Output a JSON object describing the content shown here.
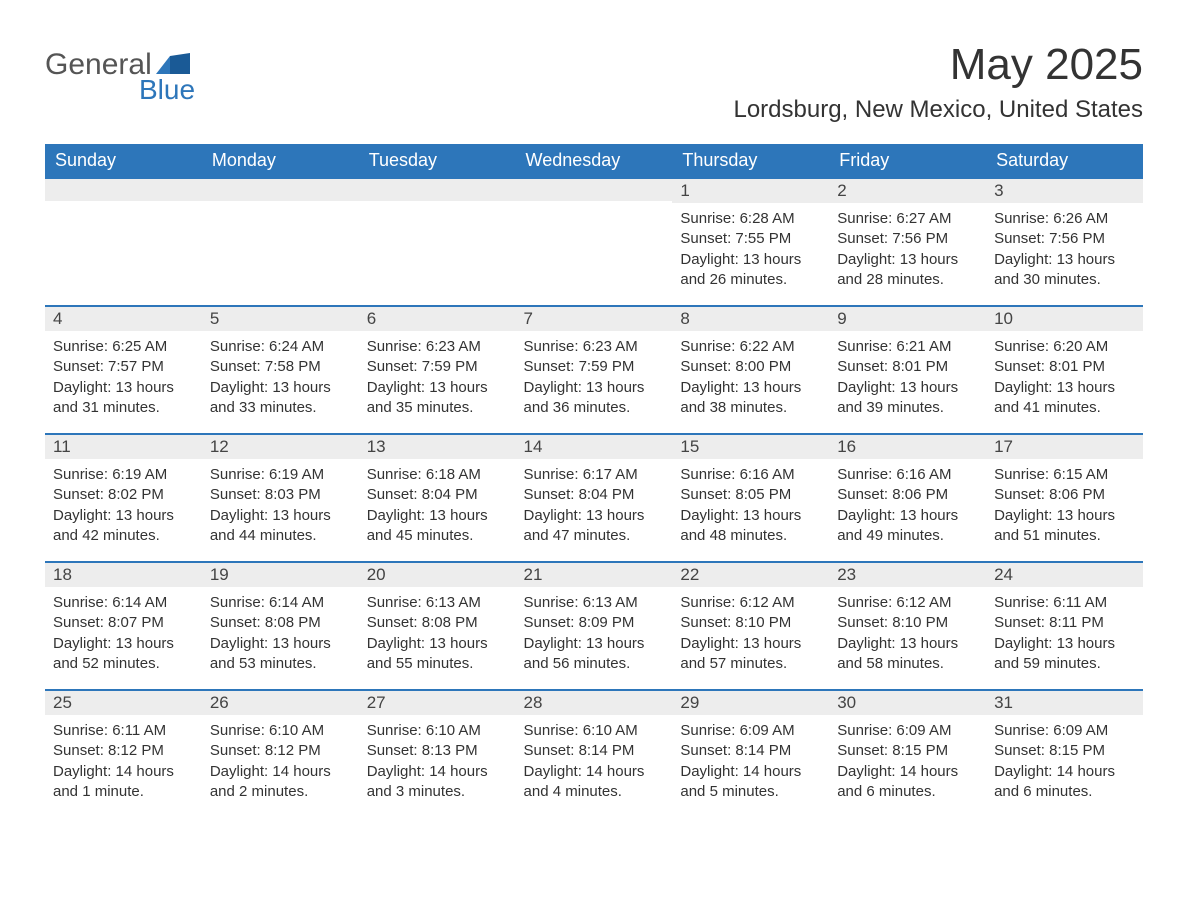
{
  "logo": {
    "general": "General",
    "blue": "Blue"
  },
  "title": "May 2025",
  "location": "Lordsburg, New Mexico, United States",
  "colors": {
    "header_bg": "#2d76ba",
    "header_text": "#ffffff",
    "daynum_bg": "#ededed",
    "row_border": "#2d76ba",
    "body_text": "#333333",
    "logo_gray": "#555555",
    "logo_blue": "#2d76ba",
    "page_bg": "#ffffff"
  },
  "typography": {
    "title_fontsize": 44,
    "location_fontsize": 24,
    "weekday_fontsize": 18,
    "daynum_fontsize": 17,
    "detail_fontsize": 15
  },
  "weekdays": [
    "Sunday",
    "Monday",
    "Tuesday",
    "Wednesday",
    "Thursday",
    "Friday",
    "Saturday"
  ],
  "labels": {
    "sunrise": "Sunrise:",
    "sunset": "Sunset:",
    "daylight": "Daylight:"
  },
  "weeks": [
    [
      null,
      null,
      null,
      null,
      {
        "day": "1",
        "sunrise": "6:28 AM",
        "sunset": "7:55 PM",
        "daylight": "13 hours and 26 minutes."
      },
      {
        "day": "2",
        "sunrise": "6:27 AM",
        "sunset": "7:56 PM",
        "daylight": "13 hours and 28 minutes."
      },
      {
        "day": "3",
        "sunrise": "6:26 AM",
        "sunset": "7:56 PM",
        "daylight": "13 hours and 30 minutes."
      }
    ],
    [
      {
        "day": "4",
        "sunrise": "6:25 AM",
        "sunset": "7:57 PM",
        "daylight": "13 hours and 31 minutes."
      },
      {
        "day": "5",
        "sunrise": "6:24 AM",
        "sunset": "7:58 PM",
        "daylight": "13 hours and 33 minutes."
      },
      {
        "day": "6",
        "sunrise": "6:23 AM",
        "sunset": "7:59 PM",
        "daylight": "13 hours and 35 minutes."
      },
      {
        "day": "7",
        "sunrise": "6:23 AM",
        "sunset": "7:59 PM",
        "daylight": "13 hours and 36 minutes."
      },
      {
        "day": "8",
        "sunrise": "6:22 AM",
        "sunset": "8:00 PM",
        "daylight": "13 hours and 38 minutes."
      },
      {
        "day": "9",
        "sunrise": "6:21 AM",
        "sunset": "8:01 PM",
        "daylight": "13 hours and 39 minutes."
      },
      {
        "day": "10",
        "sunrise": "6:20 AM",
        "sunset": "8:01 PM",
        "daylight": "13 hours and 41 minutes."
      }
    ],
    [
      {
        "day": "11",
        "sunrise": "6:19 AM",
        "sunset": "8:02 PM",
        "daylight": "13 hours and 42 minutes."
      },
      {
        "day": "12",
        "sunrise": "6:19 AM",
        "sunset": "8:03 PM",
        "daylight": "13 hours and 44 minutes."
      },
      {
        "day": "13",
        "sunrise": "6:18 AM",
        "sunset": "8:04 PM",
        "daylight": "13 hours and 45 minutes."
      },
      {
        "day": "14",
        "sunrise": "6:17 AM",
        "sunset": "8:04 PM",
        "daylight": "13 hours and 47 minutes."
      },
      {
        "day": "15",
        "sunrise": "6:16 AM",
        "sunset": "8:05 PM",
        "daylight": "13 hours and 48 minutes."
      },
      {
        "day": "16",
        "sunrise": "6:16 AM",
        "sunset": "8:06 PM",
        "daylight": "13 hours and 49 minutes."
      },
      {
        "day": "17",
        "sunrise": "6:15 AM",
        "sunset": "8:06 PM",
        "daylight": "13 hours and 51 minutes."
      }
    ],
    [
      {
        "day": "18",
        "sunrise": "6:14 AM",
        "sunset": "8:07 PM",
        "daylight": "13 hours and 52 minutes."
      },
      {
        "day": "19",
        "sunrise": "6:14 AM",
        "sunset": "8:08 PM",
        "daylight": "13 hours and 53 minutes."
      },
      {
        "day": "20",
        "sunrise": "6:13 AM",
        "sunset": "8:08 PM",
        "daylight": "13 hours and 55 minutes."
      },
      {
        "day": "21",
        "sunrise": "6:13 AM",
        "sunset": "8:09 PM",
        "daylight": "13 hours and 56 minutes."
      },
      {
        "day": "22",
        "sunrise": "6:12 AM",
        "sunset": "8:10 PM",
        "daylight": "13 hours and 57 minutes."
      },
      {
        "day": "23",
        "sunrise": "6:12 AM",
        "sunset": "8:10 PM",
        "daylight": "13 hours and 58 minutes."
      },
      {
        "day": "24",
        "sunrise": "6:11 AM",
        "sunset": "8:11 PM",
        "daylight": "13 hours and 59 minutes."
      }
    ],
    [
      {
        "day": "25",
        "sunrise": "6:11 AM",
        "sunset": "8:12 PM",
        "daylight": "14 hours and 1 minute."
      },
      {
        "day": "26",
        "sunrise": "6:10 AM",
        "sunset": "8:12 PM",
        "daylight": "14 hours and 2 minutes."
      },
      {
        "day": "27",
        "sunrise": "6:10 AM",
        "sunset": "8:13 PM",
        "daylight": "14 hours and 3 minutes."
      },
      {
        "day": "28",
        "sunrise": "6:10 AM",
        "sunset": "8:14 PM",
        "daylight": "14 hours and 4 minutes."
      },
      {
        "day": "29",
        "sunrise": "6:09 AM",
        "sunset": "8:14 PM",
        "daylight": "14 hours and 5 minutes."
      },
      {
        "day": "30",
        "sunrise": "6:09 AM",
        "sunset": "8:15 PM",
        "daylight": "14 hours and 6 minutes."
      },
      {
        "day": "31",
        "sunrise": "6:09 AM",
        "sunset": "8:15 PM",
        "daylight": "14 hours and 6 minutes."
      }
    ]
  ]
}
